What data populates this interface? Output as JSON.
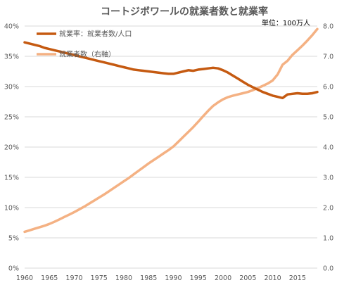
{
  "chart_data": {
    "type": "line",
    "title": "コートジボワールの就業者数と就業率",
    "unit_label": "単位：100万人",
    "x": [
      1960,
      1961,
      1962,
      1963,
      1964,
      1965,
      1966,
      1967,
      1968,
      1969,
      1970,
      1971,
      1972,
      1973,
      1974,
      1975,
      1976,
      1977,
      1978,
      1979,
      1980,
      1981,
      1982,
      1983,
      1984,
      1985,
      1986,
      1987,
      1988,
      1989,
      1990,
      1991,
      1992,
      1993,
      1994,
      1995,
      1996,
      1997,
      1998,
      1999,
      2000,
      2001,
      2002,
      2003,
      2004,
      2005,
      2006,
      2007,
      2008,
      2009,
      2010,
      2011,
      2012,
      2013,
      2014,
      2015,
      2016,
      2017,
      2018,
      2019
    ],
    "x_ticks": [
      "1960",
      "1965",
      "1970",
      "1975",
      "1980",
      "1985",
      "1990",
      "1995",
      "2000",
      "2005",
      "2010",
      "2015"
    ],
    "xlim": [
      1960,
      2019
    ],
    "y_left": {
      "ticks": [
        "0%",
        "5%",
        "10%",
        "15%",
        "20%",
        "25%",
        "30%",
        "35%",
        "40%"
      ],
      "lim": [
        0,
        40
      ]
    },
    "y_right": {
      "ticks": [
        "0.0",
        "1.0",
        "2.0",
        "3.0",
        "4.0",
        "5.0",
        "6.0",
        "7.0",
        "8.0"
      ],
      "lim": [
        0,
        8
      ]
    },
    "grid": "horizontal",
    "legend_position": "top-left",
    "series": [
      {
        "name": "就業率：就業者数/人口",
        "axis": "left",
        "color": "#c55a11",
        "values": [
          37.3,
          37.1,
          36.9,
          36.7,
          36.4,
          36.2,
          36.0,
          35.8,
          35.6,
          35.4,
          35.2,
          35.0,
          34.8,
          34.6,
          34.4,
          34.2,
          34.0,
          33.8,
          33.6,
          33.4,
          33.2,
          33.0,
          32.8,
          32.7,
          32.6,
          32.5,
          32.4,
          32.3,
          32.2,
          32.1,
          32.1,
          32.3,
          32.5,
          32.7,
          32.6,
          32.8,
          32.9,
          33.0,
          33.1,
          33.0,
          32.7,
          32.3,
          31.8,
          31.3,
          30.8,
          30.3,
          29.9,
          29.5,
          29.1,
          28.8,
          28.5,
          28.3,
          28.1,
          28.7,
          28.8,
          28.9,
          28.8,
          28.8,
          28.9,
          29.1
        ]
      },
      {
        "name": "就業者数（右軸）",
        "axis": "right",
        "color": "#f4b183",
        "values": [
          1.2,
          1.25,
          1.3,
          1.35,
          1.4,
          1.46,
          1.53,
          1.61,
          1.69,
          1.77,
          1.85,
          1.94,
          2.03,
          2.13,
          2.23,
          2.33,
          2.43,
          2.54,
          2.65,
          2.76,
          2.87,
          2.98,
          3.1,
          3.22,
          3.34,
          3.46,
          3.57,
          3.68,
          3.79,
          3.9,
          4.02,
          4.18,
          4.34,
          4.5,
          4.66,
          4.84,
          5.02,
          5.2,
          5.36,
          5.48,
          5.58,
          5.65,
          5.7,
          5.74,
          5.78,
          5.82,
          5.88,
          5.95,
          6.02,
          6.1,
          6.2,
          6.4,
          6.72,
          6.85,
          7.05,
          7.2,
          7.35,
          7.52,
          7.7,
          7.9
        ]
      }
    ]
  }
}
